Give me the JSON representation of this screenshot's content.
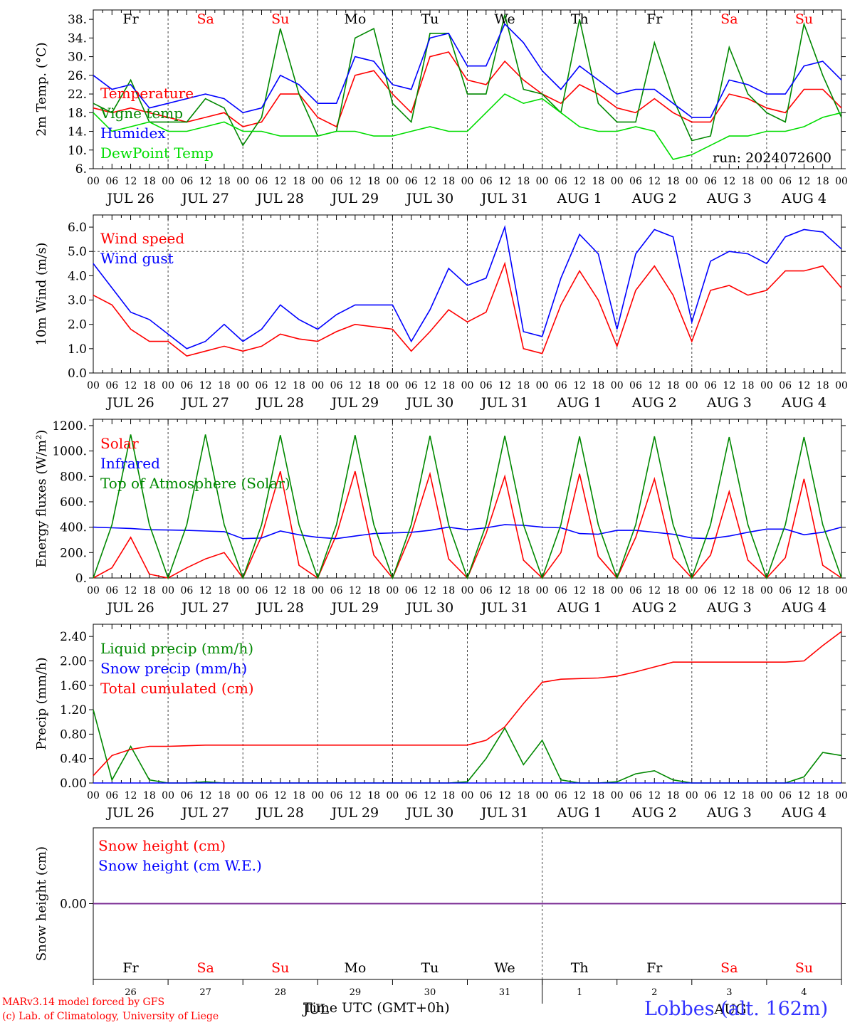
{
  "chart_data": [
    {
      "type": "line",
      "ylabel": "2m Temp. (°C)",
      "ylim": [
        6,
        40
      ],
      "ytick_labels": [
        "6.",
        "10.",
        "14.",
        "18.",
        "22.",
        "26.",
        "30.",
        "34.",
        "38."
      ],
      "annotation": "run: 2024072600",
      "grid": "dashed vertical lines at midnight",
      "legend_placement": "left",
      "x_hours": [
        0,
        6,
        12,
        18,
        24,
        30,
        36,
        42,
        48,
        54,
        60,
        66,
        72,
        78,
        84,
        90,
        96,
        102,
        108,
        114,
        120,
        126,
        132,
        138,
        144,
        150,
        156,
        162,
        168,
        174,
        180,
        186,
        192,
        198,
        204,
        210,
        216,
        222,
        228,
        234,
        240
      ],
      "series": [
        {
          "name": "Temperature",
          "color": "#ff0000",
          "values": [
            19,
            18,
            19,
            18,
            17,
            16,
            17,
            18,
            15,
            16,
            22,
            22,
            17,
            15,
            26,
            27,
            22,
            18,
            30,
            31,
            25,
            24,
            29,
            25,
            22,
            20,
            24,
            22,
            19,
            18,
            21,
            18,
            16,
            16,
            22,
            21,
            19,
            18,
            23,
            23,
            19
          ]
        },
        {
          "name": "Vigne temp",
          "color": "#008800",
          "values": [
            20,
            18,
            25,
            16,
            16,
            16,
            21,
            19,
            11,
            17,
            36,
            22,
            13,
            14,
            34,
            36,
            20,
            16,
            35,
            35,
            22,
            22,
            39,
            23,
            22,
            18,
            38,
            20,
            16,
            16,
            33,
            21,
            12,
            13,
            32,
            22,
            18,
            16,
            37,
            26,
            17
          ]
        },
        {
          "name": "Humidex",
          "color": "#0000ff",
          "values": [
            26,
            23,
            24,
            19,
            20,
            21,
            22,
            21,
            18,
            19,
            26,
            24,
            20,
            20,
            30,
            29,
            24,
            23,
            34,
            35,
            28,
            28,
            37,
            33,
            27,
            23,
            28,
            25,
            22,
            23,
            23,
            20,
            17,
            17,
            25,
            24,
            22,
            22,
            28,
            29,
            25
          ]
        },
        {
          "name": "DewPoint Temp",
          "color": "#00dd00",
          "values": [
            18,
            14,
            15,
            16,
            14,
            14,
            15,
            16,
            14,
            14,
            13,
            13,
            13,
            14,
            14,
            13,
            13,
            14,
            15,
            14,
            14,
            18,
            22,
            20,
            21,
            18,
            15,
            14,
            14,
            15,
            14,
            8,
            9,
            11,
            13,
            13,
            14,
            14,
            15,
            17,
            18
          ]
        }
      ]
    },
    {
      "type": "line",
      "ylabel": "10m Wind (m/s)",
      "ylim": [
        0,
        6.5
      ],
      "ytick_labels": [
        "0.0",
        "1.0",
        "2.0",
        "3.0",
        "4.0",
        "5.0",
        "6.0"
      ],
      "reference_line": 5.0,
      "legend_placement": "left",
      "x_hours": [
        0,
        6,
        12,
        18,
        24,
        30,
        36,
        42,
        48,
        54,
        60,
        66,
        72,
        78,
        84,
        90,
        96,
        102,
        108,
        114,
        120,
        126,
        132,
        138,
        144,
        150,
        156,
        162,
        168,
        174,
        180,
        186,
        192,
        198,
        204,
        210,
        216,
        222,
        228,
        234,
        240
      ],
      "series": [
        {
          "name": "Wind speed",
          "color": "#ff0000",
          "values": [
            3.2,
            2.8,
            1.8,
            1.3,
            1.3,
            0.7,
            0.9,
            1.1,
            0.9,
            1.1,
            1.6,
            1.4,
            1.3,
            1.7,
            2.0,
            1.9,
            1.8,
            0.9,
            1.7,
            2.6,
            2.1,
            2.5,
            4.5,
            1.0,
            0.8,
            2.8,
            4.2,
            3.0,
            1.1,
            3.4,
            4.4,
            3.2,
            1.3,
            3.4,
            3.6,
            3.2,
            3.4,
            4.2,
            4.2,
            4.4,
            3.5
          ]
        },
        {
          "name": "Wind gust",
          "color": "#0000ff",
          "values": [
            4.5,
            3.5,
            2.5,
            2.2,
            1.6,
            1.0,
            1.3,
            2.0,
            1.3,
            1.8,
            2.8,
            2.2,
            1.8,
            2.4,
            2.8,
            2.8,
            2.8,
            1.3,
            2.6,
            4.3,
            3.6,
            3.9,
            6.0,
            1.7,
            1.5,
            3.9,
            5.7,
            4.9,
            1.8,
            4.9,
            5.9,
            5.6,
            2.1,
            4.6,
            5.0,
            4.9,
            4.5,
            5.6,
            5.9,
            5.8,
            5.1
          ]
        }
      ]
    },
    {
      "type": "line",
      "ylabel": "Energy fluxes (W/m²)",
      "ylim": [
        0,
        1250
      ],
      "ytick_labels": [
        "0.",
        "200.",
        "400.",
        "600.",
        "800.",
        "1000.",
        "1200."
      ],
      "legend_placement": "left",
      "x_hours": [
        0,
        6,
        12,
        18,
        24,
        30,
        36,
        42,
        48,
        54,
        60,
        66,
        72,
        78,
        84,
        90,
        96,
        102,
        108,
        114,
        120,
        126,
        132,
        138,
        144,
        150,
        156,
        162,
        168,
        174,
        180,
        186,
        192,
        198,
        204,
        210,
        216,
        222,
        228,
        234,
        240
      ],
      "series": [
        {
          "name": "Solar",
          "color": "#ff0000",
          "values": [
            0,
            80,
            320,
            30,
            0,
            80,
            150,
            200,
            0,
            330,
            840,
            100,
            0,
            340,
            840,
            180,
            0,
            350,
            820,
            150,
            0,
            350,
            800,
            140,
            0,
            200,
            820,
            170,
            0,
            320,
            780,
            160,
            0,
            180,
            680,
            140,
            0,
            160,
            780,
            100,
            0
          ]
        },
        {
          "name": "Infrared",
          "color": "#0000ff",
          "values": [
            400,
            395,
            390,
            380,
            378,
            375,
            370,
            365,
            310,
            315,
            370,
            340,
            320,
            310,
            330,
            350,
            355,
            360,
            375,
            400,
            380,
            395,
            420,
            415,
            400,
            395,
            350,
            345,
            375,
            375,
            360,
            345,
            315,
            310,
            330,
            360,
            385,
            385,
            340,
            360,
            400
          ]
        },
        {
          "name": "Top of Atmosphere (Solar)",
          "color": "#008800",
          "values": [
            0,
            420,
            1130,
            420,
            0,
            420,
            1130,
            420,
            0,
            420,
            1125,
            420,
            0,
            420,
            1125,
            420,
            0,
            420,
            1120,
            420,
            0,
            420,
            1120,
            420,
            0,
            420,
            1115,
            420,
            0,
            420,
            1115,
            420,
            0,
            420,
            1110,
            420,
            0,
            420,
            1110,
            420,
            0
          ]
        }
      ]
    },
    {
      "type": "line",
      "ylabel": "Precip (mm/h)",
      "ylim": [
        0,
        2.6
      ],
      "ytick_labels": [
        "0.00",
        "0.40",
        "0.80",
        "1.20",
        "1.60",
        "2.00",
        "2.40"
      ],
      "legend_placement": "left",
      "x_hours": [
        0,
        6,
        12,
        18,
        24,
        30,
        36,
        42,
        48,
        54,
        60,
        66,
        72,
        78,
        84,
        90,
        96,
        102,
        108,
        114,
        120,
        126,
        132,
        138,
        144,
        150,
        156,
        162,
        168,
        174,
        180,
        186,
        192,
        198,
        204,
        210,
        216,
        222,
        228,
        234,
        240
      ],
      "series": [
        {
          "name": "Liquid precip (mm/h)",
          "color": "#008800",
          "values": [
            1.2,
            0.05,
            0.6,
            0.05,
            0,
            0,
            0.02,
            0,
            0,
            0,
            0,
            0,
            0,
            0,
            0,
            0,
            0,
            0,
            0,
            0,
            0.02,
            0.4,
            0.9,
            0.3,
            0.7,
            0.05,
            0,
            0,
            0.02,
            0.15,
            0.2,
            0.05,
            0,
            0,
            0,
            0,
            0,
            0,
            0.1,
            0.5,
            0.45
          ]
        },
        {
          "name": "Snow precip (mm/h)",
          "color": "#0000ff",
          "values": [
            0,
            0,
            0,
            0,
            0,
            0,
            0,
            0,
            0,
            0,
            0,
            0,
            0,
            0,
            0,
            0,
            0,
            0,
            0,
            0,
            0,
            0,
            0,
            0,
            0,
            0,
            0,
            0,
            0,
            0,
            0,
            0,
            0,
            0,
            0,
            0,
            0,
            0,
            0,
            0,
            0
          ]
        },
        {
          "name": "Total cumulated (cm)",
          "color": "#ff0000",
          "values": [
            0.12,
            0.45,
            0.55,
            0.6,
            0.6,
            0.61,
            0.62,
            0.62,
            0.62,
            0.62,
            0.62,
            0.62,
            0.62,
            0.62,
            0.62,
            0.62,
            0.62,
            0.62,
            0.62,
            0.62,
            0.62,
            0.7,
            0.92,
            1.3,
            1.65,
            1.7,
            1.71,
            1.72,
            1.75,
            1.82,
            1.9,
            1.98,
            1.98,
            1.98,
            1.98,
            1.98,
            1.98,
            1.98,
            2.0,
            2.25,
            2.48
          ]
        }
      ]
    },
    {
      "type": "line",
      "ylabel": "Snow height (cm)",
      "ylim": [
        -1,
        1
      ],
      "ytick_labels": [
        "0.00"
      ],
      "legend_placement": "left",
      "x_hours": [
        0,
        240
      ],
      "series": [
        {
          "name": "Snow height (cm)",
          "color": "#ff0000",
          "values": [
            0,
            0
          ]
        },
        {
          "name": "Snow height (cm W.E.)",
          "color": "#0000ff",
          "values": [
            0,
            0
          ]
        }
      ]
    }
  ],
  "axis": {
    "hour_labels": [
      "00",
      "06",
      "12",
      "18"
    ],
    "final_hour_label": "00",
    "date_labels": [
      "JUL 26",
      "JUL 27",
      "JUL 28",
      "JUL 29",
      "JUL 30",
      "JUL 31",
      "AUG  1",
      "AUG  2",
      "AUG  3",
      "AUG  4"
    ],
    "weekdays": [
      "Fr",
      "Sa",
      "Su",
      "Mo",
      "Tu",
      "We",
      "Th",
      "Fr",
      "Sa",
      "Su"
    ],
    "weekday_colors": [
      "#000000",
      "#ff0000",
      "#ff0000",
      "#000000",
      "#000000",
      "#000000",
      "#000000",
      "#000000",
      "#ff0000",
      "#ff0000"
    ],
    "day_numbers": [
      "26",
      "27",
      "28",
      "29",
      "30",
      "31",
      "1",
      "2",
      "3",
      "4"
    ],
    "month_labels": [
      "JUL",
      "AUG"
    ]
  },
  "footer": {
    "model": "MARv3.14 model forced by GFS",
    "credit": "(c) Lab. of Climatology, University of Liege",
    "xtitle": "Time UTC (GMT+0h)",
    "station": "Lobbes (alt. 162m)"
  }
}
